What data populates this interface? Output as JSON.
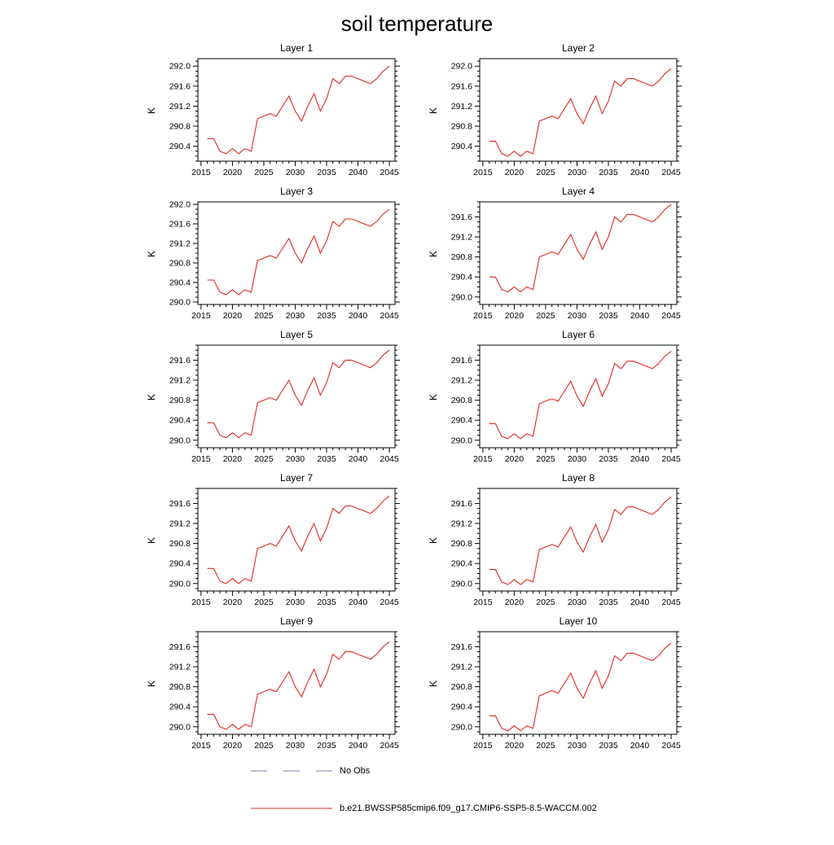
{
  "legend": {
    "no_obs_label": "No Obs",
    "series_label": "b.e21.BWSSP585cmip6.f09_g17.CMIP6-SSP5-8.5-WACCM.002",
    "no_obs_color": "#8282bd",
    "series_color": "#e22820"
  },
  "chart_data": {
    "type": "line",
    "title": "soil temperature",
    "legend_position": "bottom",
    "xlim": [
      2014.5,
      2045.9
    ],
    "xticks": [
      2015,
      2020,
      2025,
      2030,
      2035,
      2040,
      2045
    ],
    "x": [
      2016,
      2017,
      2018,
      2019,
      2020,
      2021,
      2022,
      2023,
      2024,
      2025,
      2026,
      2027,
      2028,
      2029,
      2030,
      2031,
      2032,
      2033,
      2034,
      2035,
      2036,
      2037,
      2038,
      2039,
      2040,
      2041,
      2042,
      2043,
      2044,
      2045
    ],
    "charts": [
      {
        "title": "Layer 1",
        "ylabel": "K",
        "ylim": [
          290.1,
          292.15
        ],
        "yticks": [
          290.4,
          290.8,
          291.2,
          291.6,
          292.0
        ],
        "values": [
          290.55,
          290.55,
          290.3,
          290.25,
          290.35,
          290.25,
          290.35,
          290.3,
          290.95,
          291.0,
          291.05,
          291.0,
          291.2,
          291.4,
          291.1,
          290.9,
          291.2,
          291.45,
          291.1,
          291.35,
          291.75,
          291.65,
          291.8,
          291.8,
          291.75,
          291.7,
          291.65,
          291.75,
          291.9,
          292.0
        ]
      },
      {
        "title": "Layer 2",
        "ylabel": "K",
        "ylim": [
          290.1,
          292.15
        ],
        "yticks": [
          290.4,
          290.8,
          291.2,
          291.6,
          292.0
        ],
        "values": [
          290.5,
          290.5,
          290.25,
          290.2,
          290.3,
          290.2,
          290.3,
          290.25,
          290.9,
          290.95,
          291.0,
          290.95,
          291.15,
          291.35,
          291.05,
          290.85,
          291.15,
          291.4,
          291.05,
          291.3,
          291.7,
          291.6,
          291.75,
          291.75,
          291.7,
          291.65,
          291.6,
          291.7,
          291.85,
          291.95
        ]
      },
      {
        "title": "Layer 3",
        "ylabel": "K",
        "ylim": [
          289.95,
          292.05
        ],
        "yticks": [
          290.0,
          290.4,
          290.8,
          291.2,
          291.6,
          292.0
        ],
        "values": [
          290.45,
          290.45,
          290.2,
          290.15,
          290.25,
          290.15,
          290.25,
          290.2,
          290.85,
          290.9,
          290.95,
          290.9,
          291.1,
          291.3,
          291.0,
          290.8,
          291.1,
          291.35,
          291.0,
          291.25,
          291.65,
          291.55,
          291.7,
          291.7,
          291.65,
          291.6,
          291.55,
          291.65,
          291.8,
          291.9
        ]
      },
      {
        "title": "Layer 4",
        "ylabel": "K",
        "ylim": [
          289.85,
          291.9
        ],
        "yticks": [
          290.0,
          290.4,
          290.8,
          291.2,
          291.6
        ],
        "values": [
          290.4,
          290.4,
          290.15,
          290.1,
          290.2,
          290.1,
          290.2,
          290.15,
          290.8,
          290.85,
          290.9,
          290.85,
          291.05,
          291.25,
          290.95,
          290.75,
          291.05,
          291.3,
          290.95,
          291.2,
          291.6,
          291.5,
          291.65,
          291.65,
          291.6,
          291.55,
          291.5,
          291.6,
          291.75,
          291.85
        ]
      },
      {
        "title": "Layer 5",
        "ylabel": "K",
        "ylim": [
          289.85,
          291.9
        ],
        "yticks": [
          290.0,
          290.4,
          290.8,
          291.2,
          291.6
        ],
        "values": [
          290.35,
          290.35,
          290.1,
          290.05,
          290.15,
          290.05,
          290.15,
          290.1,
          290.75,
          290.8,
          290.85,
          290.8,
          291.0,
          291.2,
          290.9,
          290.7,
          291.0,
          291.25,
          290.9,
          291.15,
          291.55,
          291.45,
          291.6,
          291.6,
          291.55,
          291.5,
          291.45,
          291.55,
          291.7,
          291.8
        ]
      },
      {
        "title": "Layer 6",
        "ylabel": "K",
        "ylim": [
          289.85,
          291.9
        ],
        "yticks": [
          290.0,
          290.4,
          290.8,
          291.2,
          291.6
        ],
        "values": [
          290.33,
          290.33,
          290.08,
          290.03,
          290.13,
          290.03,
          290.13,
          290.08,
          290.73,
          290.78,
          290.83,
          290.78,
          290.98,
          291.18,
          290.88,
          290.68,
          290.98,
          291.23,
          290.88,
          291.13,
          291.53,
          291.43,
          291.58,
          291.58,
          291.53,
          291.48,
          291.43,
          291.53,
          291.68,
          291.78
        ]
      },
      {
        "title": "Layer 7",
        "ylabel": "K",
        "ylim": [
          289.85,
          291.9
        ],
        "yticks": [
          290.0,
          290.4,
          290.8,
          291.2,
          291.6
        ],
        "values": [
          290.3,
          290.3,
          290.05,
          290.0,
          290.1,
          290.0,
          290.1,
          290.05,
          290.7,
          290.75,
          290.8,
          290.75,
          290.95,
          291.15,
          290.85,
          290.65,
          290.95,
          291.2,
          290.85,
          291.1,
          291.5,
          291.4,
          291.55,
          291.55,
          291.5,
          291.45,
          291.4,
          291.5,
          291.65,
          291.75
        ]
      },
      {
        "title": "Layer 8",
        "ylabel": "K",
        "ylim": [
          289.85,
          291.9
        ],
        "yticks": [
          290.0,
          290.4,
          290.8,
          291.2,
          291.6
        ],
        "values": [
          290.28,
          290.28,
          290.03,
          289.98,
          290.08,
          289.98,
          290.08,
          290.03,
          290.68,
          290.73,
          290.78,
          290.73,
          290.93,
          291.13,
          290.83,
          290.63,
          290.93,
          291.18,
          290.83,
          291.08,
          291.48,
          291.38,
          291.53,
          291.53,
          291.48,
          291.43,
          291.38,
          291.48,
          291.63,
          291.73
        ]
      },
      {
        "title": "Layer 9",
        "ylabel": "K",
        "ylim": [
          289.85,
          291.9
        ],
        "yticks": [
          290.0,
          290.4,
          290.8,
          291.2,
          291.6
        ],
        "values": [
          290.25,
          290.25,
          290.0,
          289.95,
          290.05,
          289.95,
          290.05,
          290.0,
          290.65,
          290.7,
          290.75,
          290.7,
          290.9,
          291.1,
          290.8,
          290.6,
          290.9,
          291.15,
          290.8,
          291.05,
          291.45,
          291.35,
          291.5,
          291.5,
          291.45,
          291.4,
          291.35,
          291.45,
          291.6,
          291.7
        ]
      },
      {
        "title": "Layer 10",
        "ylabel": "K",
        "ylim": [
          289.85,
          291.9
        ],
        "yticks": [
          290.0,
          290.4,
          290.8,
          291.2,
          291.6
        ],
        "values": [
          290.22,
          290.22,
          289.97,
          289.92,
          290.02,
          289.92,
          290.02,
          289.97,
          290.62,
          290.67,
          290.72,
          290.67,
          290.87,
          291.07,
          290.77,
          290.57,
          290.87,
          291.12,
          290.77,
          291.02,
          291.42,
          291.32,
          291.47,
          291.47,
          291.42,
          291.37,
          291.32,
          291.42,
          291.57,
          291.67
        ]
      }
    ]
  }
}
